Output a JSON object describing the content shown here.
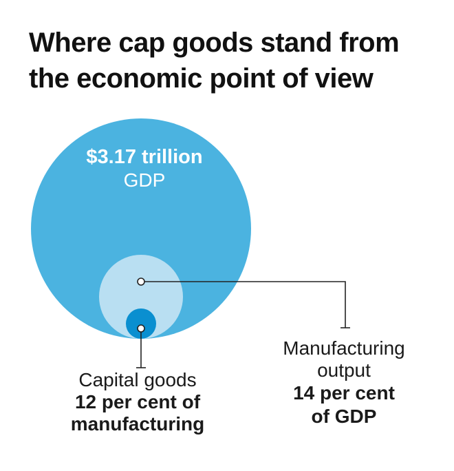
{
  "title_lines": [
    "Where cap goods stand from",
    "the economic point of view"
  ],
  "chart_data": {
    "type": "bubble-nested",
    "items": [
      {
        "name": "GDP",
        "value_label": "$3.17 trillion",
        "color": "#4bb3e0"
      },
      {
        "name": "Manufacturing output",
        "share_label": "14 per cent of GDP",
        "share_of_parent": 0.14,
        "color": "#b9dff2"
      },
      {
        "name": "Capital goods",
        "share_label": "12 per cent of manufacturing",
        "share_of_parent": 0.12,
        "color": "#0a8fd0"
      }
    ]
  },
  "labels": {
    "gdp_value": "$3.17 trillion",
    "gdp_name": "GDP",
    "cap_name": "Capital goods",
    "cap_share_1": "12 per cent of",
    "cap_share_2": "manufacturing",
    "mfg_name_1": "Manufacturing",
    "mfg_name_2": "output",
    "mfg_share_1": "14 per cent",
    "mfg_share_2": "of GDP"
  },
  "colors": {
    "line": "#222222",
    "marker_fill": "#ffffff"
  }
}
